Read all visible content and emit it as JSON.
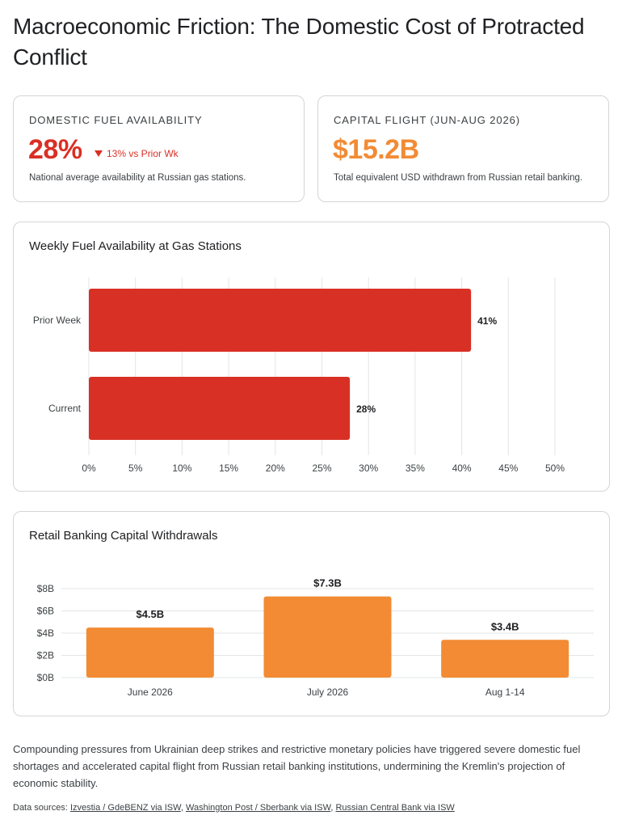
{
  "title": "Macroeconomic Friction: The Domestic Cost of Protracted Conflict",
  "kpis": {
    "fuel": {
      "label": "DOMESTIC FUEL AVAILABILITY",
      "value": "28%",
      "delta": "13% vs Prior Wk",
      "delta_icon": "down-triangle-icon",
      "description": "National average availability at Russian gas stations.",
      "color": "#d93025"
    },
    "capital": {
      "label": "CAPITAL FLIGHT (JUN-AUG 2026)",
      "value": "$15.2B",
      "description": "Total equivalent USD withdrawn from Russian retail banking.",
      "color": "#f28b34"
    }
  },
  "chart_data": [
    {
      "type": "bar",
      "orientation": "horizontal",
      "title": "Weekly Fuel Availability at Gas Stations",
      "categories": [
        "Prior Week",
        "Current"
      ],
      "values": [
        41,
        28
      ],
      "data_labels": [
        "41%",
        "28%"
      ],
      "xlim": [
        0,
        50
      ],
      "x_ticks": [
        0,
        5,
        10,
        15,
        20,
        25,
        30,
        35,
        40,
        45,
        50
      ],
      "x_tick_labels": [
        "0%",
        "5%",
        "10%",
        "15%",
        "20%",
        "25%",
        "30%",
        "35%",
        "40%",
        "45%",
        "50%"
      ],
      "grid": "vertical",
      "color": "#d93025"
    },
    {
      "type": "bar",
      "orientation": "vertical",
      "title": "Retail Banking Capital Withdrawals",
      "categories": [
        "June 2026",
        "July 2026",
        "Aug 1-14"
      ],
      "values": [
        4.5,
        7.3,
        3.4
      ],
      "data_labels": [
        "$4.5B",
        "$7.3B",
        "$3.4B"
      ],
      "ylim": [
        0,
        8
      ],
      "y_ticks": [
        0,
        2,
        4,
        6,
        8
      ],
      "y_tick_labels": [
        "$0B",
        "$2B",
        "$4B",
        "$6B",
        "$8B"
      ],
      "grid": "horizontal",
      "color": "#f28b34"
    }
  ],
  "summary": "Compounding pressures from Ukrainian deep strikes and restrictive monetary policies have triggered severe domestic fuel shortages and accelerated capital flight from Russian retail banking institutions, undermining the Kremlin's projection of economic stability.",
  "sources": {
    "prefix": "Data sources:",
    "links": [
      "Izvestia / GdeBENZ via ISW",
      "Washington Post / Sberbank via ISW",
      "Russian Central Bank via ISW"
    ]
  }
}
